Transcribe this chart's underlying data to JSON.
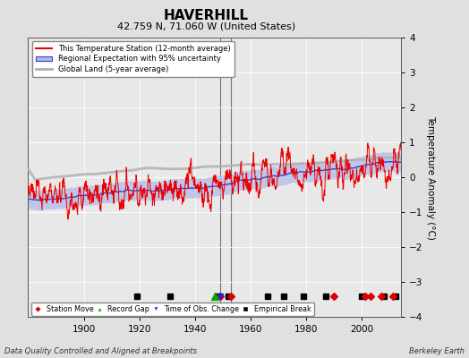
{
  "title": "HAVERHILL",
  "subtitle": "42.759 N, 71.060 W (United States)",
  "ylabel": "Temperature Anomaly (°C)",
  "footer_left": "Data Quality Controlled and Aligned at Breakpoints",
  "footer_right": "Berkeley Earth",
  "xlim": [
    1880,
    2014
  ],
  "ylim": [
    -4,
    4
  ],
  "yticks": [
    -4,
    -3,
    -2,
    -1,
    0,
    1,
    2,
    3,
    4
  ],
  "xticks": [
    1900,
    1920,
    1940,
    1960,
    1980,
    2000
  ],
  "bg_color": "#e0e0e0",
  "plot_bg_color": "#e8e8e8",
  "station_moves": [
    1949,
    1953,
    1990,
    2001,
    2003,
    2007,
    2011
  ],
  "record_gaps": [
    1947
  ],
  "obs_changes": [
    1949
  ],
  "empirical_breaks": [
    1919,
    1931,
    1948,
    1952,
    1966,
    1972,
    1979,
    1987,
    2000,
    2008,
    2012
  ],
  "vertical_lines": [
    1949,
    1953
  ],
  "legend_labels": [
    "This Temperature Station (12-month average)",
    "Regional Expectation with 95% uncertainty",
    "Global Land (5-year average)"
  ],
  "seed": 42
}
